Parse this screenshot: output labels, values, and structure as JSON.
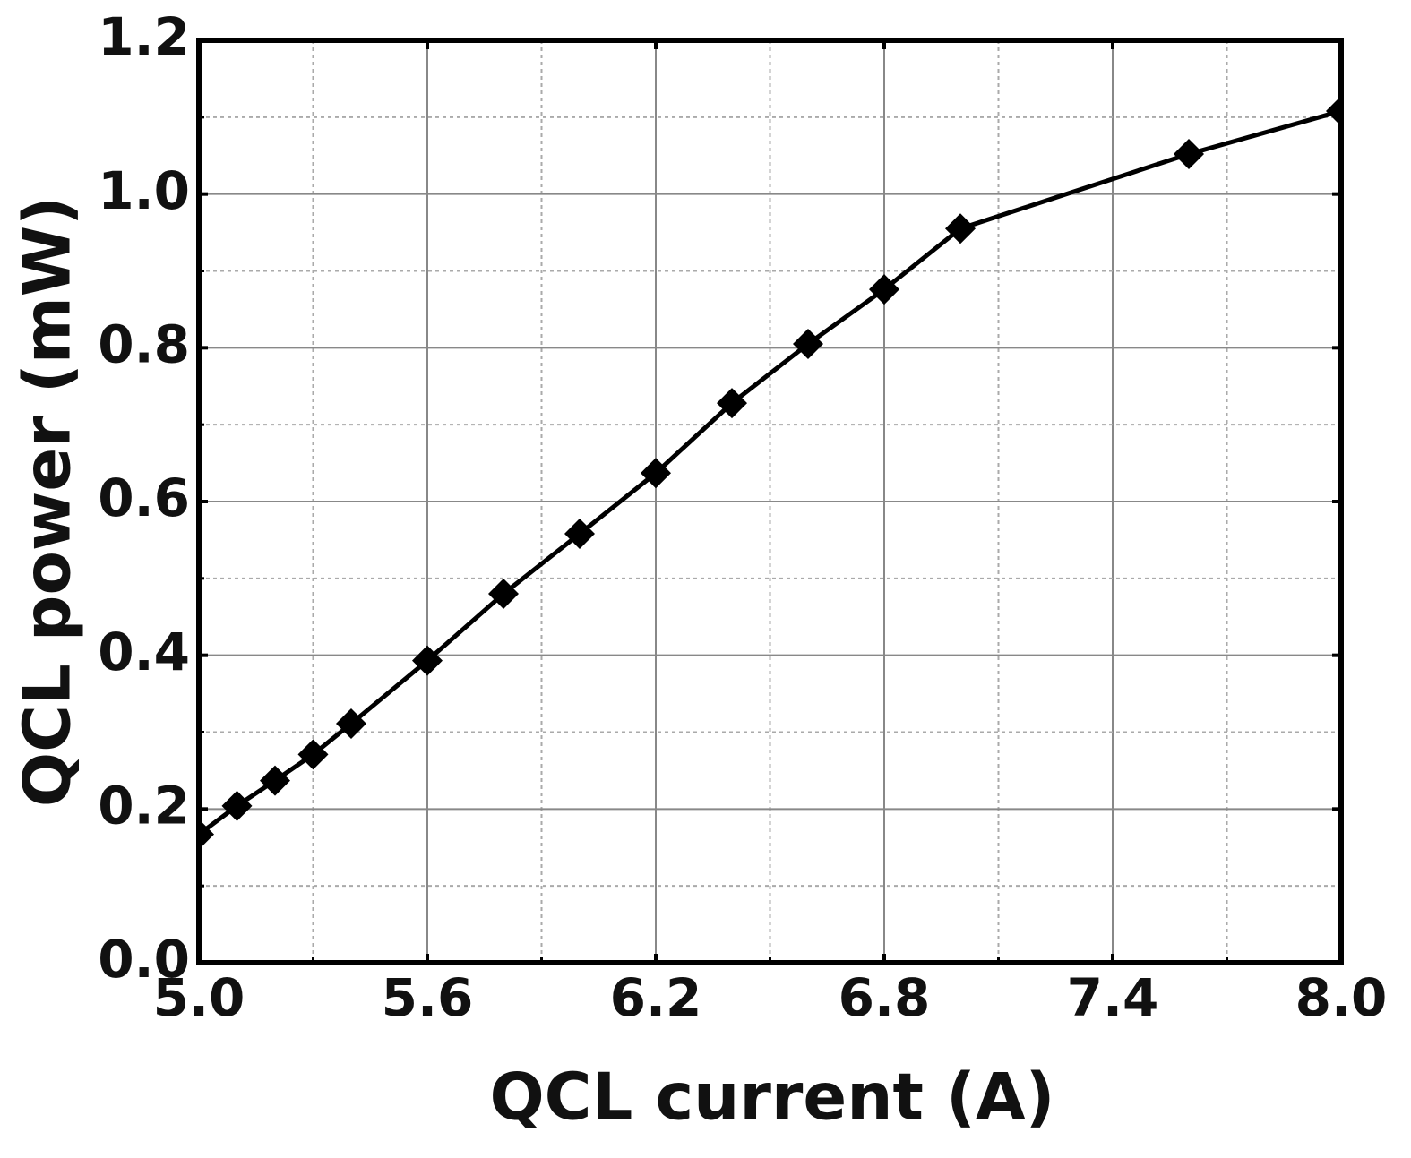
{
  "chart_data": {
    "type": "line",
    "x_label": "QCL current (A)",
    "y_label": "QCL power (mW)",
    "x": [
      5.0,
      5.1,
      5.2,
      5.3,
      5.4,
      5.6,
      5.8,
      6.0,
      6.2,
      6.4,
      6.6,
      6.8,
      7.0,
      7.6,
      8.0
    ],
    "series": [
      {
        "color": "#000000",
        "values": [
          0.167,
          0.204,
          0.237,
          0.271,
          0.311,
          0.393,
          0.48,
          0.558,
          0.637,
          0.728,
          0.805,
          0.876,
          0.955,
          1.052,
          1.108
        ]
      }
    ],
    "xlim": [
      5.0,
      8.0
    ],
    "ylim": [
      0.0,
      1.2
    ],
    "xticks": [
      {
        "value": 5.0,
        "label": "5.0"
      },
      5.6,
      6.2,
      6.8,
      7.4,
      {
        "value": 8.0,
        "label": "8.0"
      }
    ],
    "yticks": [
      {
        "value": 0.0,
        "label": "0.0"
      },
      0.2,
      0.4,
      0.6,
      0.8,
      {
        "value": 1.0,
        "label": "1.0"
      },
      1.2
    ],
    "grid": true,
    "marker": "diamond"
  }
}
